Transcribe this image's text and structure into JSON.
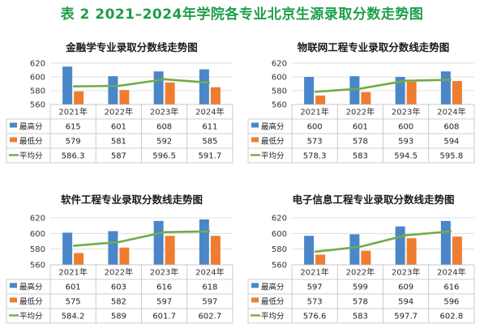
{
  "page": {
    "title": "表 2 2021–2024年学院各专业北京生源录取分数走势图"
  },
  "legend": {
    "max_label": "最高分",
    "min_label": "最低分",
    "avg_label": "平均分"
  },
  "colors": {
    "max": "#4a86c8",
    "min": "#ee7d31",
    "avg": "#70ad47",
    "title": "#1e9e48"
  },
  "chart_data": [
    {
      "type": "bar",
      "title": "金融学专业录取分数线走势图",
      "categories": [
        "2021年",
        "2022年",
        "2023年",
        "2024年"
      ],
      "ylim": [
        560,
        620
      ],
      "yticks": [
        560,
        580,
        600,
        620
      ],
      "series": [
        {
          "name": "最高分",
          "kind": "bar",
          "values": [
            615,
            601,
            608,
            611
          ],
          "labels": [
            "615",
            "601",
            "608",
            "611"
          ]
        },
        {
          "name": "最低分",
          "kind": "bar",
          "values": [
            579,
            581,
            592,
            585
          ],
          "labels": [
            "579",
            "581",
            "592",
            "585"
          ]
        },
        {
          "name": "平均分",
          "kind": "line",
          "values": [
            586.3,
            587,
            596.5,
            591.7
          ],
          "labels": [
            "586.3",
            "587",
            "596.5",
            "591.7"
          ]
        }
      ]
    },
    {
      "type": "bar",
      "title": "物联网工程专业录取分数线走势图",
      "categories": [
        "2021年",
        "2022年",
        "2023年",
        "2024年"
      ],
      "ylim": [
        560,
        620
      ],
      "yticks": [
        560,
        580,
        600,
        620
      ],
      "series": [
        {
          "name": "最高分",
          "kind": "bar",
          "values": [
            600,
            601,
            600,
            608
          ],
          "labels": [
            "600",
            "601",
            "600",
            "608"
          ]
        },
        {
          "name": "最低分",
          "kind": "bar",
          "values": [
            573,
            578,
            593,
            594
          ],
          "labels": [
            "573",
            "578",
            "593",
            "594"
          ]
        },
        {
          "name": "平均分",
          "kind": "line",
          "values": [
            578.3,
            583,
            594.5,
            595.8
          ],
          "labels": [
            "578.3",
            "583",
            "594.5",
            "595.8"
          ]
        }
      ]
    },
    {
      "type": "bar",
      "title": "软件工程专业录取分数线走势图",
      "categories": [
        "2021年",
        "2022年",
        "2023年",
        "2024年"
      ],
      "ylim": [
        560,
        620
      ],
      "yticks": [
        560,
        580,
        600,
        620
      ],
      "series": [
        {
          "name": "最高分",
          "kind": "bar",
          "values": [
            601,
            603,
            616,
            618
          ],
          "labels": [
            "601",
            "603",
            "616",
            "618"
          ]
        },
        {
          "name": "最低分",
          "kind": "bar",
          "values": [
            575,
            582,
            597,
            597
          ],
          "labels": [
            "575",
            "582",
            "597",
            "597"
          ]
        },
        {
          "name": "平均分",
          "kind": "line",
          "values": [
            584.2,
            589,
            601.7,
            602.7
          ],
          "labels": [
            "584.2",
            "589",
            "601.7",
            "602.7"
          ]
        }
      ]
    },
    {
      "type": "bar",
      "title": "电子信息工程专业录取分数线走势图",
      "categories": [
        "2021年",
        "2022年",
        "2023年",
        "2024年"
      ],
      "ylim": [
        560,
        620
      ],
      "yticks": [
        560,
        580,
        600,
        620
      ],
      "series": [
        {
          "name": "最高分",
          "kind": "bar",
          "values": [
            597,
            599,
            609,
            616
          ],
          "labels": [
            "597",
            "599",
            "609",
            "616"
          ]
        },
        {
          "name": "最低分",
          "kind": "bar",
          "values": [
            573,
            578,
            594,
            596
          ],
          "labels": [
            "573",
            "578",
            "594",
            "596"
          ]
        },
        {
          "name": "平均分",
          "kind": "line",
          "values": [
            576.6,
            583,
            597.7,
            602.8
          ],
          "labels": [
            "576.6",
            "583",
            "597.7",
            "602.8"
          ]
        }
      ]
    }
  ]
}
